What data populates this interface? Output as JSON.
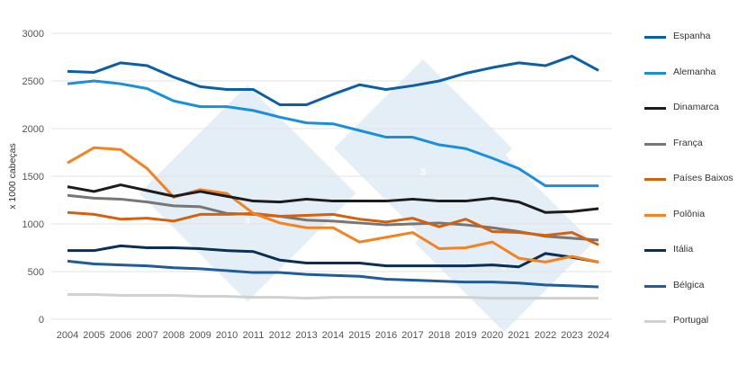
{
  "chart_data": {
    "type": "line",
    "title": "",
    "xlabel": "",
    "ylabel": "x 1000 cabeças",
    "ylim": [
      0,
      3000
    ],
    "yticks": [
      0,
      500,
      1000,
      1500,
      2000,
      2500,
      3000
    ],
    "grid": true,
    "legend_position": "right",
    "x": [
      2004,
      2005,
      2006,
      2007,
      2008,
      2009,
      2010,
      2011,
      2012,
      2013,
      2014,
      2015,
      2016,
      2017,
      2018,
      2019,
      2020,
      2021,
      2022,
      2023,
      2024
    ],
    "series": [
      {
        "name": "Espanha",
        "color": "#0b5ea8",
        "values": [
          2600,
          2590,
          2690,
          2660,
          2540,
          2440,
          2410,
          2410,
          2250,
          2250,
          2360,
          2460,
          2410,
          2450,
          2500,
          2580,
          2640,
          2690,
          2660,
          2760,
          2610
        ]
      },
      {
        "name": "Alemanha",
        "color": "#1a8fdc",
        "values": [
          2470,
          2500,
          2470,
          2420,
          2290,
          2230,
          2230,
          2190,
          2120,
          2060,
          2050,
          1980,
          1910,
          1910,
          1830,
          1790,
          1690,
          1580,
          1400,
          1400,
          1400
        ]
      },
      {
        "name": "Dinamarca",
        "color": "#1c1c1c",
        "values": [
          1390,
          1340,
          1410,
          1350,
          1290,
          1340,
          1290,
          1240,
          1230,
          1260,
          1240,
          1240,
          1240,
          1260,
          1240,
          1240,
          1270,
          1230,
          1120,
          1130,
          1160
        ]
      },
      {
        "name": "França",
        "color": "#767676",
        "values": [
          1300,
          1270,
          1260,
          1230,
          1190,
          1180,
          1110,
          1100,
          1080,
          1040,
          1030,
          1010,
          990,
          1000,
          1010,
          990,
          960,
          920,
          870,
          850,
          830
        ]
      },
      {
        "name": "Países Baixos",
        "color": "#d3620f",
        "values": [
          1120,
          1100,
          1050,
          1060,
          1030,
          1100,
          1100,
          1110,
          1080,
          1090,
          1100,
          1050,
          1020,
          1060,
          970,
          1050,
          920,
          910,
          880,
          910,
          780
        ]
      },
      {
        "name": "Polônia",
        "color": "#f58220",
        "values": [
          1640,
          1800,
          1780,
          1580,
          1280,
          1360,
          1320,
          1110,
          1010,
          960,
          960,
          810,
          860,
          910,
          740,
          750,
          810,
          640,
          600,
          660,
          600
        ]
      },
      {
        "name": "Itália",
        "color": "#0b2e55",
        "values": [
          720,
          720,
          770,
          750,
          750,
          740,
          720,
          710,
          620,
          590,
          590,
          590,
          560,
          560,
          560,
          560,
          570,
          550,
          690,
          650,
          600
        ]
      },
      {
        "name": "Bélgica",
        "color": "#1f5c99",
        "values": [
          610,
          580,
          570,
          560,
          540,
          530,
          510,
          490,
          490,
          470,
          460,
          450,
          420,
          410,
          400,
          390,
          390,
          380,
          360,
          350,
          340
        ]
      },
      {
        "name": "Portugal",
        "color": "#d0d0d0",
        "values": [
          260,
          260,
          250,
          250,
          250,
          240,
          240,
          230,
          230,
          220,
          230,
          230,
          230,
          230,
          230,
          230,
          220,
          220,
          220,
          220,
          220
        ]
      }
    ]
  }
}
